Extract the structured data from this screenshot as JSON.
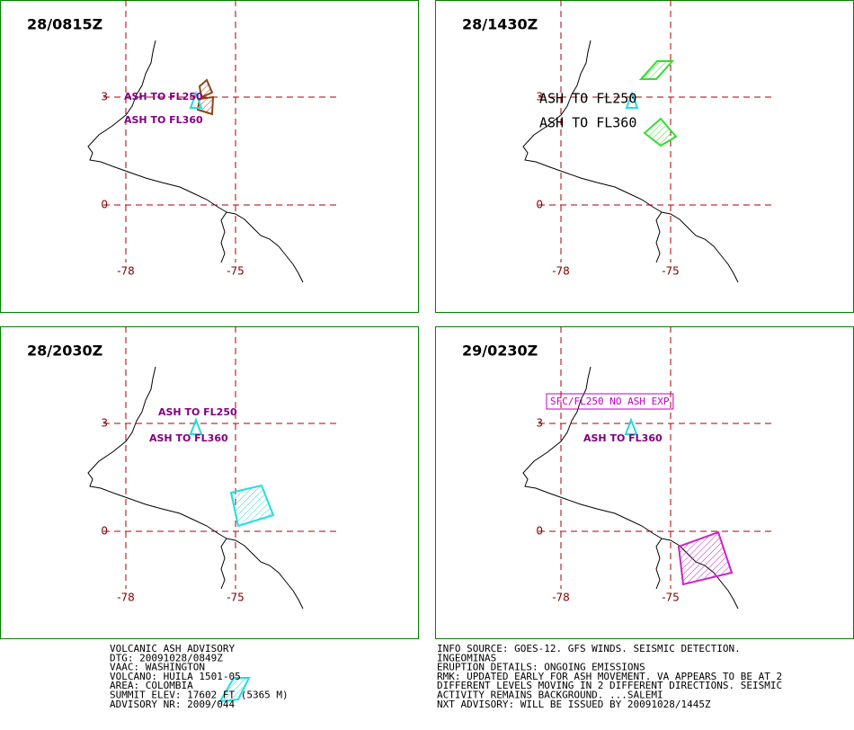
{
  "grid": {
    "lat": [
      "3",
      "0"
    ],
    "lon": [
      "-78",
      "-75"
    ]
  },
  "panels": [
    {
      "time": "28/0815Z",
      "labels": [
        "ASH TO FL250",
        "ASH TO FL360"
      ]
    },
    {
      "time": "28/1430Z",
      "labels": [
        "ASH TO FL250",
        "ASH TO FL360"
      ]
    },
    {
      "time": "28/2030Z",
      "labels": [
        "ASH TO FL250",
        "ASH TO FL360"
      ]
    },
    {
      "time": "29/0230Z",
      "labels": [
        "SFC/FL250 NO ASH EXP",
        "ASH TO FL360"
      ]
    }
  ],
  "advisory_left": [
    "VOLCANIC ASH ADVISORY",
    "DTG: 20091028/0849Z",
    "VAAC: WASHINGTON",
    "VOLCANO: HUILA 1501-05",
    "AREA: COLOMBIA",
    "SUMMIT ELEV: 17602 FT (5365 M)",
    "ADVISORY NR: 2009/044"
  ],
  "advisory_right": [
    "INFO SOURCE: GOES-12. GFS WINDS. SEISMIC DETECTION.",
    "INGEOMINAS",
    "ERUPTION DETAILS: ONGOING EMISSIONS",
    "RMK: UPDATED EARLY FOR ASH MOVEMENT. VA APPEARS TO BE AT 2",
    "DIFFERENT LEVELS MOVING IN 2 DIFFERENT DIRECTIONS. SEISMIC",
    "ACTIVITY REMAINS BACKGROUND. ...SALEMI",
    "NXT ADVISORY: WILL BE ISSUED BY 20091028/1445Z"
  ]
}
